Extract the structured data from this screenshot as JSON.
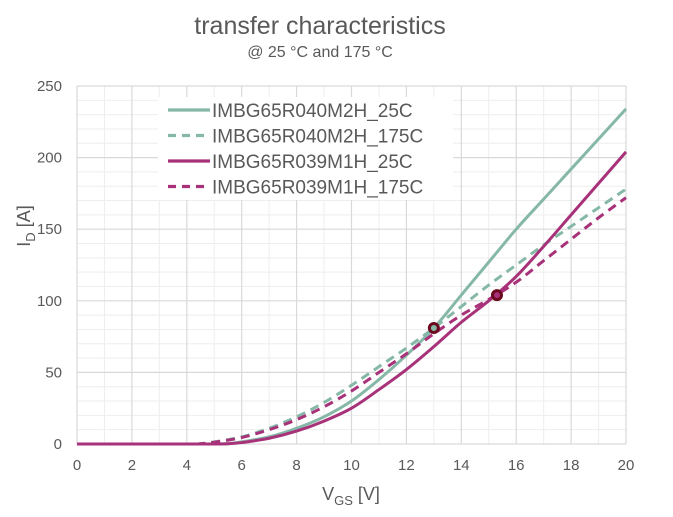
{
  "header": {
    "title": "transfer characteristics",
    "subtitle": "@ 25 °C and 175 °C"
  },
  "axes": {
    "xlabel_main": "V",
    "xlabel_sub": "GS",
    "xlabel_unit": " [V]",
    "ylabel_main": "I",
    "ylabel_sub": "D",
    "ylabel_unit": " [A]"
  },
  "colors": {
    "teal": "#86b8a8",
    "magenta": "#a8327a",
    "marker_ring": "#6b0a1e",
    "grid_major": "#d9d9d9",
    "grid_minor": "#eeeeee"
  },
  "chart_data": {
    "type": "line",
    "title": "transfer characteristics",
    "subtitle": "@ 25 °C and 175 °C",
    "xlabel": "V_GS [V]",
    "ylabel": "I_D [A]",
    "xlim": [
      0,
      20
    ],
    "ylim": [
      0,
      250
    ],
    "x_ticks": [
      0,
      2,
      4,
      6,
      8,
      10,
      12,
      14,
      16,
      18,
      20
    ],
    "y_ticks": [
      0,
      50,
      100,
      150,
      200,
      250
    ],
    "grid": true,
    "legend_position": "upper-left (inside plot)",
    "series": [
      {
        "name": "IMBG65R040M2H_25C",
        "color": "#86b8a8",
        "style": "solid",
        "x": [
          0,
          4,
          5,
          5.5,
          6,
          7,
          8,
          9,
          10,
          11,
          12,
          13,
          14,
          15,
          16,
          17,
          18,
          19,
          20
        ],
        "y": [
          0,
          0,
          0,
          0.3,
          1.5,
          5,
          11,
          19,
          30,
          45,
          62,
          81,
          104,
          127,
          150,
          171,
          192,
          213,
          234
        ]
      },
      {
        "name": "IMBG65R040M2H_175C",
        "color": "#86b8a8",
        "style": "dashed",
        "x": [
          0,
          4,
          4.5,
          5,
          6,
          7,
          8,
          9,
          10,
          11,
          12,
          13,
          14,
          15,
          16,
          17,
          18,
          19,
          20
        ],
        "y": [
          0,
          0,
          0.3,
          1.5,
          5,
          11,
          19,
          29,
          41,
          54,
          67,
          81,
          96,
          111,
          125,
          139,
          152,
          165,
          178
        ]
      },
      {
        "name": "IMBG65R039M1H_25C",
        "color": "#a8327a",
        "style": "solid",
        "x": [
          0,
          4,
          5,
          5.5,
          6,
          7,
          8,
          9,
          10,
          11,
          12,
          13,
          14,
          15,
          16,
          17,
          18,
          19,
          20
        ],
        "y": [
          0,
          0,
          0,
          0.2,
          1,
          4,
          9,
          16,
          25,
          38,
          52,
          68,
          85,
          100,
          117,
          138,
          160,
          182,
          204
        ]
      },
      {
        "name": "IMBG65R039M1H_175C",
        "color": "#a8327a",
        "style": "dashed",
        "x": [
          0,
          4,
          4.5,
          5,
          6,
          7,
          8,
          9,
          10,
          11,
          12,
          13,
          14,
          15,
          16,
          17,
          18,
          19,
          20
        ],
        "y": [
          0,
          0,
          0.2,
          1.2,
          4.5,
          10,
          17,
          26,
          37,
          50,
          63,
          77,
          90,
          101,
          113,
          128,
          143,
          158,
          172
        ]
      }
    ],
    "annotations": [
      {
        "type": "marker",
        "x": 13.0,
        "y": 81,
        "label": "crossover IMBG65R040M2H 25C/175C",
        "fill": "#86b8a8",
        "ring": "#6b0a1e"
      },
      {
        "type": "marker",
        "x": 15.3,
        "y": 104,
        "label": "crossover IMBG65R039M1H 25C/175C",
        "fill": "#a8327a",
        "ring": "#6b0a1e"
      }
    ]
  }
}
